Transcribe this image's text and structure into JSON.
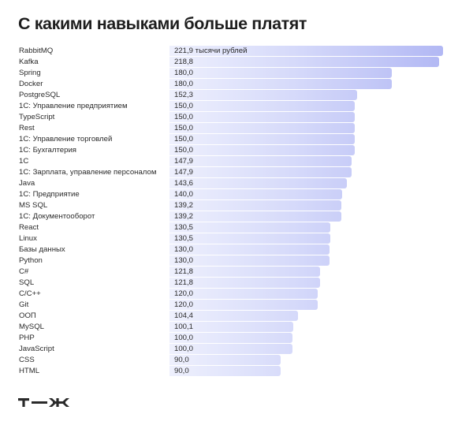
{
  "title": "С какими навыками больше платят",
  "logo": {
    "text": "т—ж"
  },
  "chart_data": {
    "type": "bar",
    "orientation": "horizontal",
    "title": "С какими навыками больше платят",
    "xlabel": "",
    "ylabel": "",
    "unit_label": "тысячи рублей",
    "grid": false,
    "legend": null,
    "categories": [
      "RabbitMQ",
      "Kafka",
      "Spring",
      "Docker",
      "PostgreSQL",
      "1С: Управление предприятием",
      "TypeScript",
      "Rest",
      "1С: Управление торговлей",
      "1С: Бухгалтерия",
      "1С",
      "1С: Зарплата, управление персоналом",
      "Java",
      "1С: Предприятие",
      "MS SQL",
      "1С: Документооборот",
      "React",
      "Linux",
      "Базы данных",
      "Python",
      "C#",
      "SQL",
      "C/C++",
      "Git",
      "ООП",
      "MySQL",
      "PHP",
      "JavaScript",
      "CSS",
      "HTML"
    ],
    "values": [
      221.9,
      218.8,
      180.0,
      180.0,
      152.3,
      150.0,
      150.0,
      150.0,
      150.0,
      150.0,
      147.9,
      147.9,
      143.6,
      140.0,
      139.2,
      139.2,
      130.5,
      130.5,
      130.0,
      130.0,
      121.8,
      121.8,
      120.0,
      120.0,
      104.4,
      100.1,
      100.0,
      100.0,
      90.0,
      90.0
    ],
    "value_labels": [
      "221,9 тысячи рублей",
      "218,8",
      "180,0",
      "180,0",
      "152,3",
      "150,0",
      "150,0",
      "150,0",
      "150,0",
      "150,0",
      "147,9",
      "147,9",
      "143,6",
      "140,0",
      "139,2",
      "139,2",
      "130,5",
      "130,5",
      "130,0",
      "130,0",
      "121,8",
      "121,8",
      "120,0",
      "120,0",
      "104,4",
      "100,1",
      "100,0",
      "100,0",
      "90,0",
      "90,0"
    ],
    "xlim": [
      0,
      221.9
    ],
    "colors": {
      "bar_gradient_start": "#eef0fd",
      "bar_gradient_end": "#b2b8f4",
      "text": "#2a2a2a"
    }
  }
}
